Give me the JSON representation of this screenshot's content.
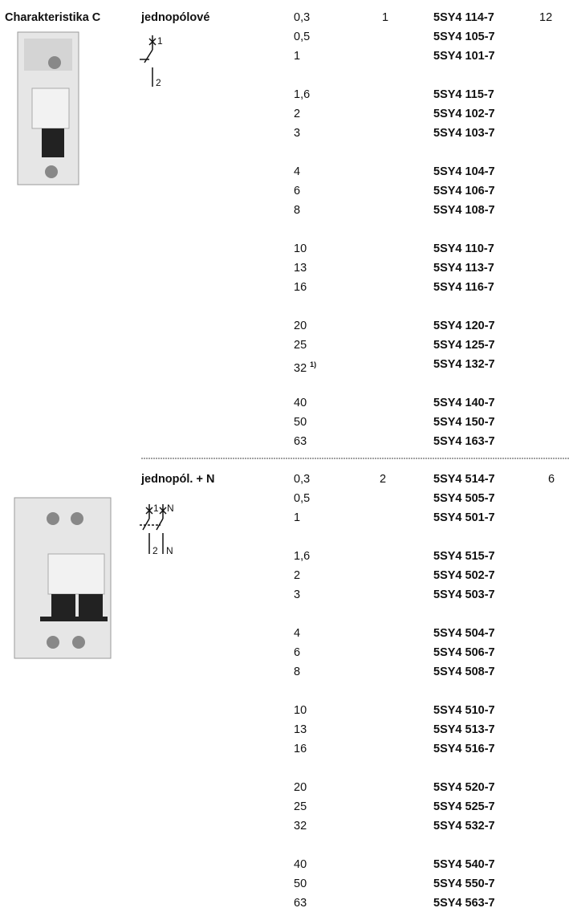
{
  "header": {
    "title": "Charakteristika C"
  },
  "sections": [
    {
      "title": "jednopólové",
      "diagram_labels": [
        "1",
        "2"
      ],
      "modules": "1",
      "pack": "12",
      "groups": [
        [
          {
            "current": "0,3",
            "order": "5SY4 114-7"
          },
          {
            "current": "0,5",
            "order": "5SY4 105-7"
          },
          {
            "current": "1",
            "order": "5SY4 101-7"
          }
        ],
        [
          {
            "current": "1,6",
            "order": "5SY4 115-7"
          },
          {
            "current": "2",
            "order": "5SY4 102-7"
          },
          {
            "current": "3",
            "order": "5SY4 103-7"
          }
        ],
        [
          {
            "current": "4",
            "order": "5SY4 104-7"
          },
          {
            "current": "6",
            "order": "5SY4 106-7"
          },
          {
            "current": "8",
            "order": "5SY4 108-7"
          }
        ],
        [
          {
            "current": "10",
            "order": "5SY4 110-7"
          },
          {
            "current": "13",
            "order": "5SY4 113-7"
          },
          {
            "current": "16",
            "order": "5SY4 116-7"
          }
        ],
        [
          {
            "current": "20",
            "order": "5SY4 120-7"
          },
          {
            "current": "25",
            "order": "5SY4 125-7"
          },
          {
            "current": "32",
            "note": "1)",
            "order": "5SY4 132-7"
          }
        ],
        [
          {
            "current": "40",
            "order": "5SY4 140-7"
          },
          {
            "current": "50",
            "order": "5SY4 150-7"
          },
          {
            "current": "63",
            "order": "5SY4 163-7"
          }
        ]
      ]
    },
    {
      "title": "jednopól. + N",
      "diagram_labels": [
        "1",
        "N",
        "2",
        "N"
      ],
      "modules": "2",
      "pack": "6",
      "groups": [
        [
          {
            "current": "0,3",
            "order": "5SY4 514-7"
          },
          {
            "current": "0,5",
            "order": "5SY4 505-7"
          },
          {
            "current": "1",
            "order": "5SY4 501-7"
          }
        ],
        [
          {
            "current": "1,6",
            "order": "5SY4 515-7"
          },
          {
            "current": "2",
            "order": "5SY4 502-7"
          },
          {
            "current": "3",
            "order": "5SY4 503-7"
          }
        ],
        [
          {
            "current": "4",
            "order": "5SY4 504-7"
          },
          {
            "current": "6",
            "order": "5SY4 506-7"
          },
          {
            "current": "8",
            "order": "5SY4 508-7"
          }
        ],
        [
          {
            "current": "10",
            "order": "5SY4 510-7"
          },
          {
            "current": "13",
            "order": "5SY4 513-7"
          },
          {
            "current": "16",
            "order": "5SY4 516-7"
          }
        ],
        [
          {
            "current": "20",
            "order": "5SY4 520-7"
          },
          {
            "current": "25",
            "order": "5SY4 525-7"
          },
          {
            "current": "32",
            "order": "5SY4 532-7"
          }
        ],
        [
          {
            "current": "40",
            "order": "5SY4 540-7"
          },
          {
            "current": "50",
            "order": "5SY4 550-7"
          },
          {
            "current": "63",
            "order": "5SY4 563-7"
          }
        ]
      ]
    }
  ]
}
